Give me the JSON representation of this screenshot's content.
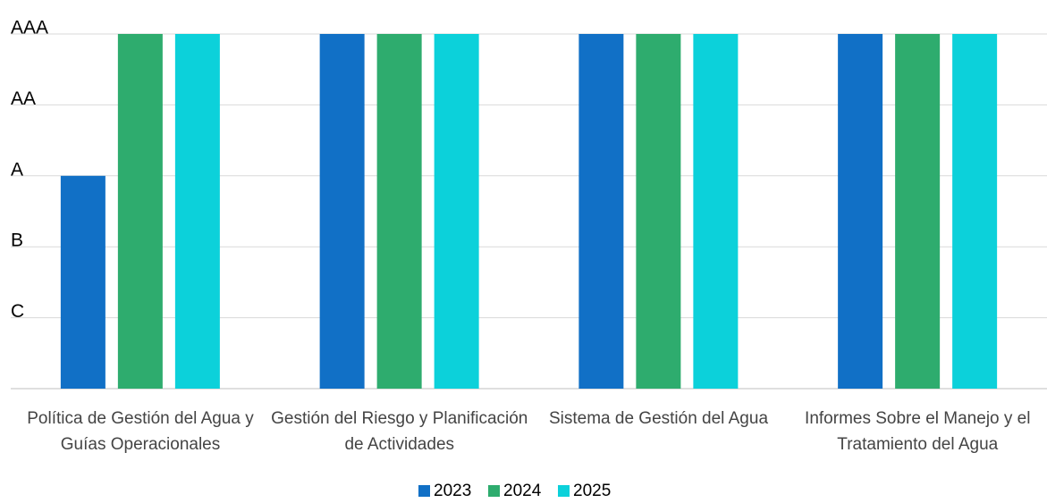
{
  "chart_data": {
    "type": "bar",
    "categories": [
      "Política de Gestión del Agua y Guías Operacionales",
      "Gestión del Riesgo y Planificación de Actividades",
      "Sistema de Gestión del Agua",
      "Informes Sobre el Manejo y el Tratamiento del Agua"
    ],
    "series": [
      {
        "name": "2023",
        "color": "#1170c6",
        "values": [
          3,
          5,
          5,
          5
        ]
      },
      {
        "name": "2024",
        "color": "#2eac6e",
        "values": [
          5,
          5,
          5,
          5
        ]
      },
      {
        "name": "2025",
        "color": "#0cd1da",
        "values": [
          5,
          5,
          5,
          5
        ]
      }
    ],
    "ylim": [
      0,
      5
    ],
    "yticks": [
      {
        "value": 1,
        "label": "C"
      },
      {
        "value": 2,
        "label": "B"
      },
      {
        "value": 3,
        "label": "A"
      },
      {
        "value": 4,
        "label": "AA"
      },
      {
        "value": 5,
        "label": "AAA"
      }
    ],
    "grid": true,
    "legend": "bottom"
  }
}
